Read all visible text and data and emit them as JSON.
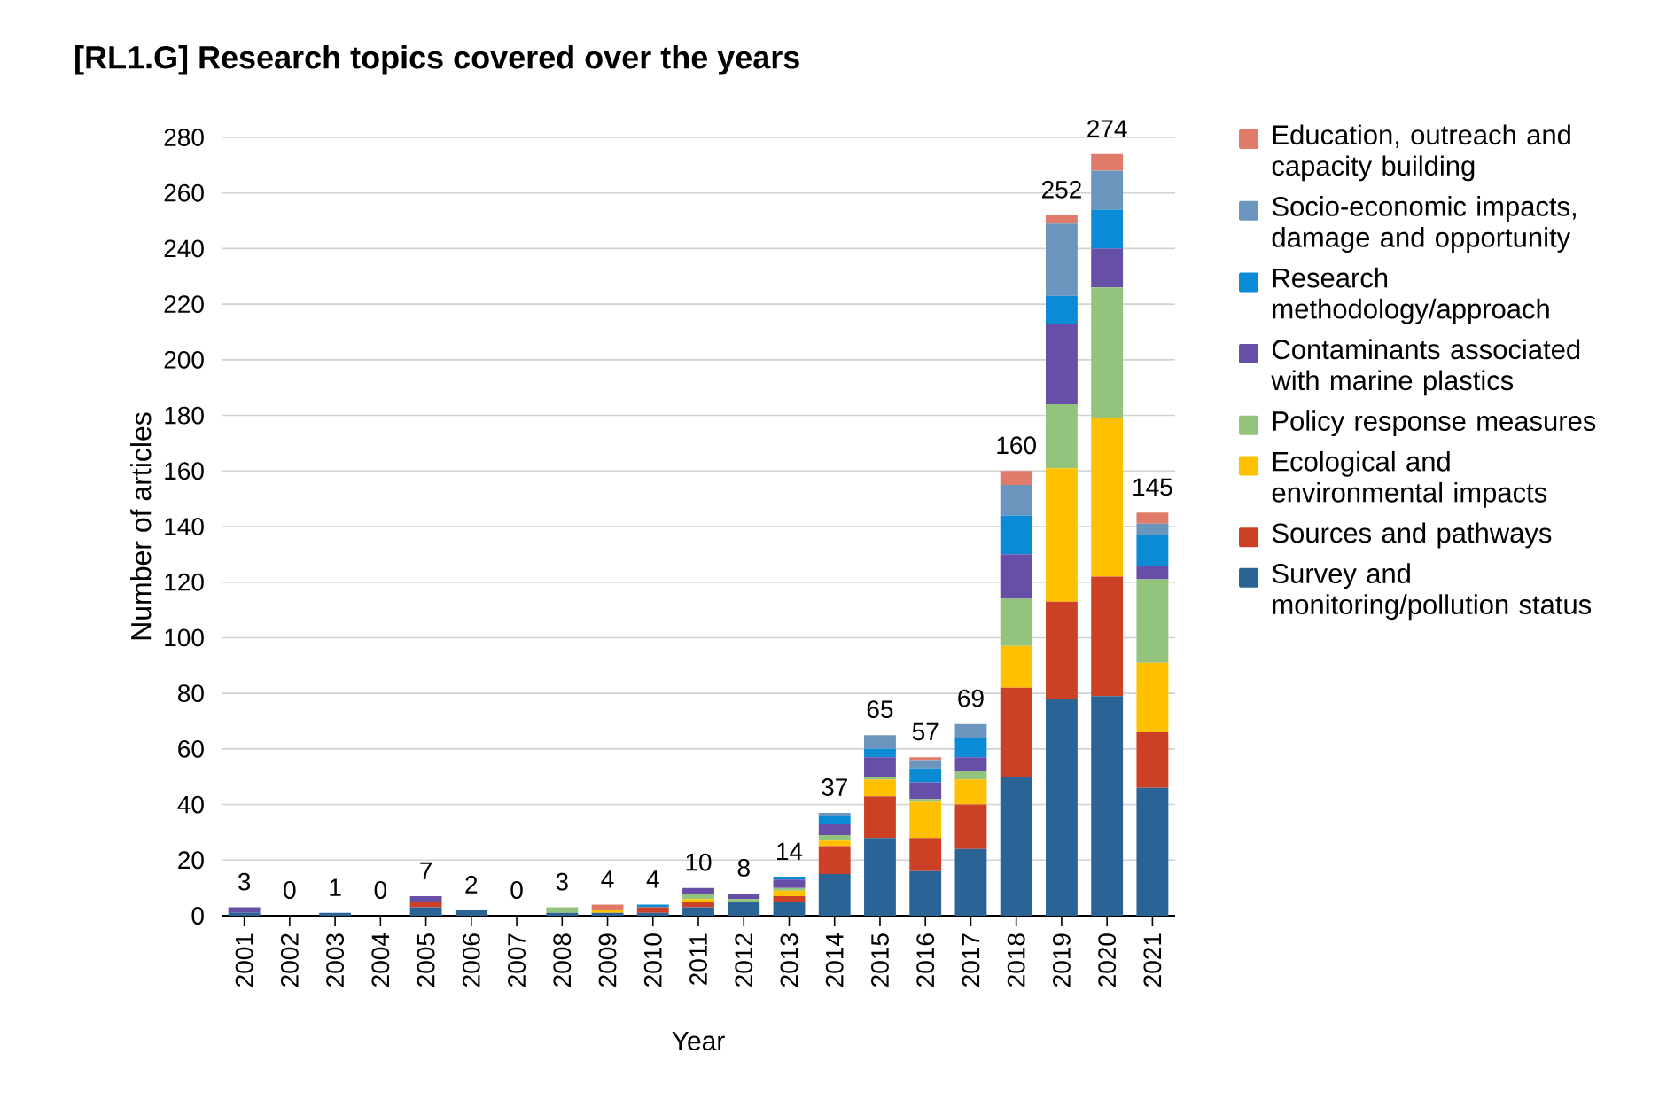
{
  "chart_data": {
    "type": "bar",
    "stacked": true,
    "title": "[RL1.G] Research topics covered over the years",
    "xlabel": "Year",
    "ylabel": "Number of articles",
    "categories": [
      "2001",
      "2002",
      "2003",
      "2004",
      "2005",
      "2006",
      "2007",
      "2008",
      "2009",
      "2010",
      "2011",
      "2012",
      "2013",
      "2014",
      "2015",
      "2016",
      "2017",
      "2018",
      "2019",
      "2020",
      "2021"
    ],
    "series": [
      {
        "name": "Survey and monitoring/pollution status",
        "color": "#2a6496",
        "values": [
          1,
          0,
          1,
          0,
          3,
          2,
          0,
          1,
          1,
          1,
          3,
          5,
          5,
          15,
          28,
          16,
          24,
          50,
          78,
          79,
          46
        ]
      },
      {
        "name": "Sources and pathways",
        "color": "#cc4125",
        "values": [
          0,
          0,
          0,
          0,
          2,
          0,
          0,
          0,
          0,
          2,
          2,
          0,
          2,
          10,
          15,
          12,
          16,
          32,
          35,
          43,
          20
        ]
      },
      {
        "name": "Ecological and environmental impacts",
        "color": "#ffc000",
        "values": [
          0,
          0,
          0,
          0,
          0,
          0,
          0,
          0,
          1,
          0,
          1,
          0,
          2,
          2,
          6,
          13,
          9,
          15,
          48,
          57,
          25
        ]
      },
      {
        "name": "Policy response measures",
        "color": "#93c47d",
        "values": [
          0,
          0,
          0,
          0,
          0,
          0,
          0,
          2,
          0,
          0,
          2,
          1,
          1,
          2,
          1,
          1,
          3,
          17,
          23,
          47,
          30
        ]
      },
      {
        "name": "Contaminants associated with marine plastics",
        "color": "#674ea7",
        "values": [
          2,
          0,
          0,
          0,
          2,
          0,
          0,
          0,
          0,
          0,
          2,
          2,
          3,
          4,
          7,
          6,
          5,
          16,
          29,
          14,
          5
        ]
      },
      {
        "name": "Research methodology/approach",
        "color": "#0b8bd6",
        "values": [
          0,
          0,
          0,
          0,
          0,
          0,
          0,
          0,
          0,
          1,
          0,
          0,
          1,
          3,
          3,
          5,
          7,
          14,
          10,
          14,
          11
        ]
      },
      {
        "name": "Socio-economic impacts, damage and opportunity",
        "color": "#6b95bc",
        "values": [
          0,
          0,
          0,
          0,
          0,
          0,
          0,
          0,
          0,
          0,
          0,
          0,
          0,
          1,
          5,
          3,
          5,
          11,
          26,
          14,
          4
        ]
      },
      {
        "name": "Education, outreach and capacity building",
        "color": "#e07b6a",
        "values": [
          0,
          0,
          0,
          0,
          0,
          0,
          0,
          0,
          2,
          0,
          0,
          0,
          0,
          0,
          0,
          1,
          0,
          5,
          3,
          6,
          4
        ]
      }
    ],
    "totals": [
      "3",
      "0",
      "1",
      "0",
      "7",
      "2",
      "0",
      "3",
      "4",
      "4",
      "10",
      "8",
      "14",
      "37",
      "65",
      "57",
      "69",
      "160",
      "252",
      "274",
      "145"
    ],
    "ylim": [
      0,
      280
    ],
    "yticks": [
      0,
      20,
      40,
      60,
      80,
      100,
      120,
      140,
      160,
      180,
      200,
      220,
      240,
      260,
      280
    ],
    "grid": "y",
    "legend": "right"
  }
}
